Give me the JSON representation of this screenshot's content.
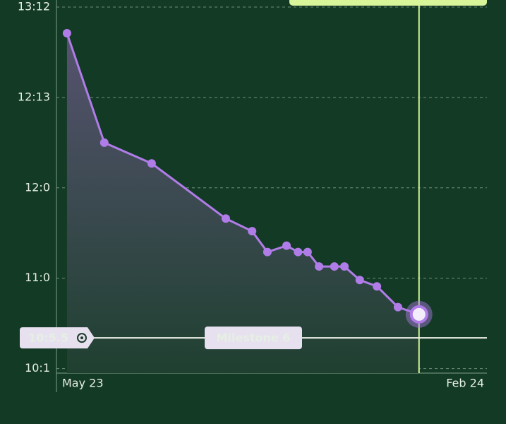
{
  "chart_data": {
    "type": "line",
    "x": [
      0.22,
      1.0,
      1.99,
      3.54,
      4.09,
      4.41,
      4.81,
      5.05,
      5.25,
      5.49,
      5.81,
      6.02,
      6.34,
      6.7,
      7.14,
      7.58
    ],
    "series": [
      {
        "color": "#b07de8",
        "values": [
          13.71,
          12.5,
          12.27,
          11.66,
          11.52,
          11.29,
          11.36,
          11.29,
          11.29,
          11.13,
          11.13,
          11.13,
          10.98,
          10.91,
          10.68,
          10.6
        ]
      }
    ],
    "xlim": [
      0,
      9
    ],
    "xticks": [
      {
        "value": 0,
        "label": "May 23"
      },
      {
        "value": 9,
        "label": "Feb 24"
      }
    ],
    "ylim": [
      9.95,
      14.07
    ],
    "yticks": [
      {
        "value": 10,
        "label": "10:1"
      },
      {
        "value": 11,
        "label": "11:0"
      },
      {
        "value": 12,
        "label": "12:0"
      },
      {
        "value": 13,
        "label": "12:13"
      },
      {
        "value": 14,
        "label": "13:12"
      }
    ],
    "grid": true,
    "annotations": [
      {
        "y": 10.34,
        "y_label": "10:5.5",
        "text": "Milestone 6"
      }
    ]
  }
}
